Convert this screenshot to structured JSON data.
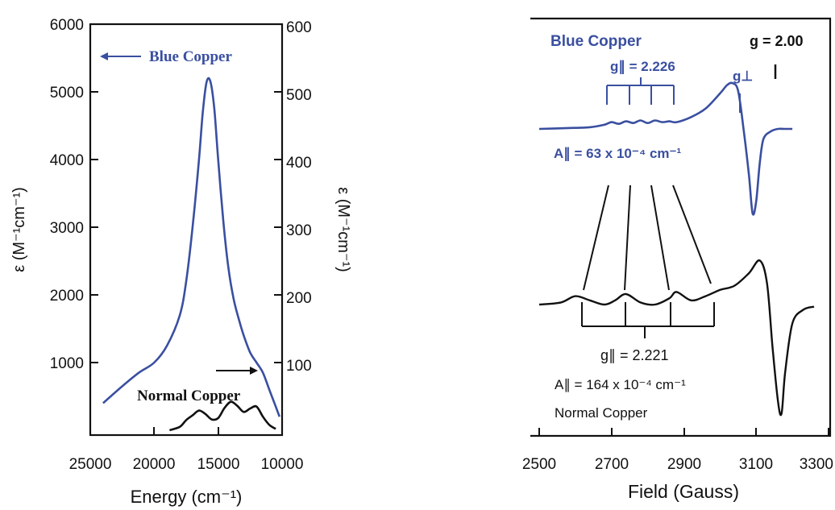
{
  "colors": {
    "blue": "#3a4fa0",
    "black": "#111111"
  },
  "left_panel": {
    "left_axis_ticks": [
      "6000",
      "5000",
      "4000",
      "3000",
      "2000",
      "1000"
    ],
    "right_axis_ticks": [
      "600",
      "500",
      "400",
      "300",
      "200",
      "100"
    ],
    "x_ticks": [
      "25000",
      "20000",
      "15000",
      "10000"
    ],
    "ylabel_left": "ε (M⁻¹cm⁻¹)",
    "ylabel_right": "ε (M⁻¹cm⁻¹)",
    "xlabel": "Energy (cm⁻¹)",
    "label_blue": "Blue Copper",
    "label_normal": "Normal Copper"
  },
  "right_panel": {
    "x_ticks": [
      "2500",
      "2700",
      "2900",
      "3100",
      "3300"
    ],
    "xlabel": "Field (Gauss)",
    "blue_title": "Blue Copper",
    "g_free": "g = 2.00",
    "g_parallel_blue": "g∥ = 2.226",
    "g_perp": "g⊥",
    "a_parallel_blue": "A∥ = 63 x 10⁻⁴ cm⁻¹",
    "g_parallel_normal": "g∥ = 2.221",
    "a_parallel_normal": "A∥ = 164 x 10⁻⁴ cm⁻¹",
    "normal_title": "Normal Copper"
  },
  "chart_data": [
    {
      "type": "line",
      "title": "",
      "xlabel": "Energy (cm⁻¹)",
      "ylabel": "ε (M⁻¹cm⁻¹)",
      "y2label": "ε (M⁻¹cm⁻¹)",
      "xlim": [
        25000,
        10000
      ],
      "ylim": [
        0,
        6000
      ],
      "y2lim": [
        0,
        600
      ],
      "series": [
        {
          "name": "Blue Copper",
          "axis": "left",
          "color": "#3a4fa0",
          "x": [
            24000,
            22500,
            21200,
            20000,
            19000,
            18000,
            17500,
            17000,
            16500,
            16200,
            15900,
            15600,
            15300,
            15000,
            14600,
            14200,
            13800,
            13400,
            13000,
            12500,
            12000,
            11500,
            11000,
            10500,
            10200
          ],
          "y": [
            400,
            650,
            850,
            1000,
            1250,
            1700,
            2200,
            3000,
            4000,
            4700,
            5150,
            5150,
            4750,
            4000,
            3100,
            2400,
            1950,
            1650,
            1400,
            1150,
            1000,
            850,
            600,
            350,
            200
          ]
        },
        {
          "name": "Normal Copper",
          "axis": "right",
          "color": "#111111",
          "x": [
            18800,
            18000,
            17500,
            17000,
            16500,
            16000,
            15500,
            15000,
            14500,
            14000,
            13500,
            13000,
            12500,
            12000,
            11500,
            11000,
            10500
          ],
          "y": [
            0,
            5,
            15,
            22,
            29,
            24,
            16,
            18,
            33,
            42,
            36,
            27,
            32,
            35,
            20,
            8,
            2
          ]
        }
      ]
    },
    {
      "type": "line",
      "title": "",
      "xlabel": "Field (Gauss)",
      "ylabel": "",
      "xlim": [
        2500,
        3300
      ],
      "series": [
        {
          "name": "Blue Copper",
          "color": "#3a4fa0",
          "x": [
            2500,
            2580,
            2640,
            2680,
            2700,
            2720,
            2740,
            2760,
            2780,
            2800,
            2820,
            2840,
            2860,
            2880,
            2920,
            2960,
            3000,
            3020,
            3035,
            3050,
            3065,
            3080,
            3090,
            3100,
            3110,
            3120,
            3140,
            3160,
            3180,
            3200
          ],
          "y": [
            0,
            1,
            2,
            5,
            8,
            6,
            9,
            7,
            10,
            7,
            10,
            8,
            9,
            8,
            14,
            24,
            42,
            52,
            54,
            45,
            0,
            -55,
            -100,
            -85,
            -40,
            -12,
            -3,
            0,
            0,
            0
          ]
        },
        {
          "name": "Normal Copper",
          "color": "#111111",
          "x": [
            2500,
            2560,
            2600,
            2640,
            2680,
            2710,
            2740,
            2780,
            2820,
            2860,
            2880,
            2920,
            2960,
            3000,
            3040,
            3080,
            3110,
            3130,
            3145,
            3160,
            3170,
            3180,
            3200,
            3230,
            3260
          ],
          "y": [
            0,
            2,
            8,
            4,
            0,
            4,
            10,
            2,
            0,
            6,
            12,
            4,
            8,
            14,
            18,
            30,
            42,
            20,
            -40,
            -92,
            -104,
            -65,
            -18,
            -5,
            -2
          ]
        }
      ]
    }
  ]
}
